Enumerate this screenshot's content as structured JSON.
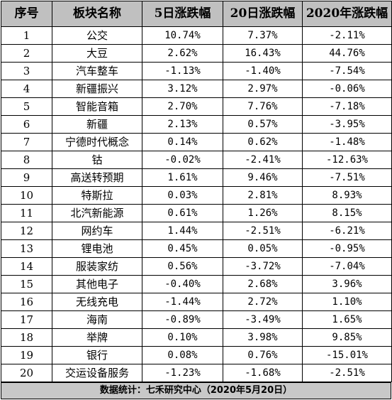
{
  "header": {
    "col_index": "序号",
    "col_sector": "板块名称",
    "col_5d": "5日涨跌幅",
    "col_20d": "20日涨跌幅",
    "col_2020": "2020年涨跌幅"
  },
  "rows": [
    {
      "idx": "1",
      "name": "公交",
      "d5": "10.74%",
      "d20": "7.37%",
      "ytd": "-2.11%"
    },
    {
      "idx": "2",
      "name": "大豆",
      "d5": "2.62%",
      "d20": "16.43%",
      "ytd": "44.76%"
    },
    {
      "idx": "3",
      "name": "汽车整车",
      "d5": "-1.13%",
      "d20": "-1.40%",
      "ytd": "-7.54%"
    },
    {
      "idx": "4",
      "name": "新疆振兴",
      "d5": "3.12%",
      "d20": "2.97%",
      "ytd": "-0.06%"
    },
    {
      "idx": "5",
      "name": "智能音箱",
      "d5": "2.70%",
      "d20": "7.76%",
      "ytd": "-7.18%"
    },
    {
      "idx": "6",
      "name": "新疆",
      "d5": "2.13%",
      "d20": "0.57%",
      "ytd": "-3.95%"
    },
    {
      "idx": "7",
      "name": "宁德时代概念",
      "d5": "0.14%",
      "d20": "0.62%",
      "ytd": "-1.48%"
    },
    {
      "idx": "8",
      "name": "钴",
      "d5": "-0.02%",
      "d20": "-2.41%",
      "ytd": "-12.63%"
    },
    {
      "idx": "9",
      "name": "高送转预期",
      "d5": "1.61%",
      "d20": "9.46%",
      "ytd": "-7.51%"
    },
    {
      "idx": "10",
      "name": "特斯拉",
      "d5": "0.03%",
      "d20": "2.81%",
      "ytd": "8.93%"
    },
    {
      "idx": "11",
      "name": "北汽新能源",
      "d5": "0.61%",
      "d20": "1.26%",
      "ytd": "8.15%"
    },
    {
      "idx": "12",
      "name": "网约车",
      "d5": "1.44%",
      "d20": "-2.51%",
      "ytd": "-6.21%"
    },
    {
      "idx": "13",
      "name": "锂电池",
      "d5": "0.45%",
      "d20": "0.05%",
      "ytd": "-0.95%"
    },
    {
      "idx": "14",
      "name": "服装家纺",
      "d5": "0.56%",
      "d20": "-3.72%",
      "ytd": "-7.04%"
    },
    {
      "idx": "15",
      "name": "其他电子",
      "d5": "-0.40%",
      "d20": "2.68%",
      "ytd": "3.96%"
    },
    {
      "idx": "16",
      "name": "无线充电",
      "d5": "-1.44%",
      "d20": "2.72%",
      "ytd": "1.10%"
    },
    {
      "idx": "17",
      "name": "海南",
      "d5": "-0.89%",
      "d20": "-3.49%",
      "ytd": "1.65%"
    },
    {
      "idx": "18",
      "name": "举牌",
      "d5": "0.10%",
      "d20": "3.98%",
      "ytd": "9.85%"
    },
    {
      "idx": "19",
      "name": "银行",
      "d5": "0.08%",
      "d20": "0.76%",
      "ytd": "-15.01%"
    },
    {
      "idx": "20",
      "name": "交运设备服务",
      "d5": "-1.23%",
      "d20": "-1.68%",
      "ytd": "-2.51%"
    }
  ],
  "footer": {
    "source": "数据统计：七禾研究中心（2020年5月20日）"
  },
  "colors": {
    "header_bg": "#c0c0c0",
    "footer_bg": "#c8c8c8",
    "border": "#000000"
  }
}
